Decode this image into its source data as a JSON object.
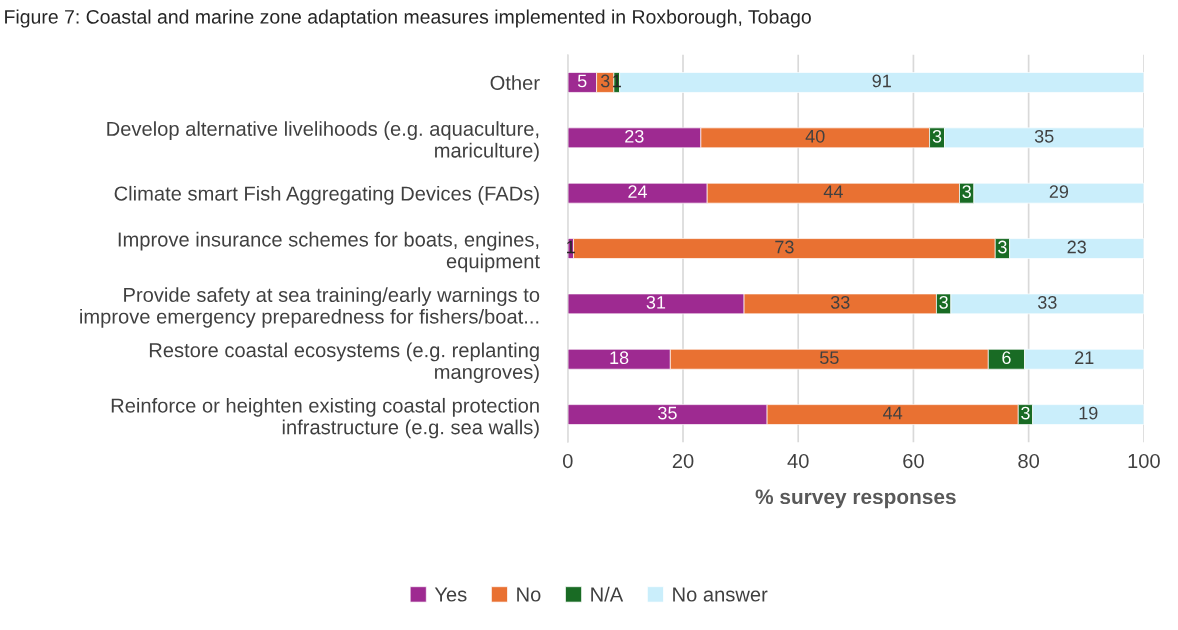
{
  "chart_data": {
    "type": "bar",
    "orientation": "horizontal",
    "stacked": true,
    "title": "Figure 7: Coastal and marine zone adaptation measures implemented in Roxborough, Tobago",
    "xlabel": "% survey responses",
    "categories": [
      "Other",
      "Develop alternative livelihoods (e.g. aquaculture,\nmariculture)",
      "Climate smart Fish Aggregating Devices (FADs)",
      "Improve insurance schemes for boats, engines,\nequipment",
      "Provide safety at sea training/early warnings to\nimprove emergency preparedness for fishers/boat...",
      "Restore coastal ecosystems (e.g. replanting\nmangroves)",
      "Reinforce or heighten existing coastal protection\ninfrastructure (e.g. sea walls)"
    ],
    "series": [
      {
        "name": "Yes",
        "color": "#9e2a91",
        "values": [
          5,
          23.1,
          24.2,
          1,
          30.6,
          17.8,
          34.6
        ],
        "value_labels": [
          "5",
          "23",
          "24",
          "1",
          "31",
          "18",
          "35"
        ]
      },
      {
        "name": "No",
        "color": "#e97132",
        "values": [
          3,
          39.7,
          43.8,
          73.2,
          33.4,
          55.2,
          43.6
        ],
        "value_labels": [
          "3",
          "40",
          "44",
          "73",
          "33",
          "55",
          "44"
        ]
      },
      {
        "name": "N/A",
        "color": "#196b24",
        "values": [
          1,
          2.6,
          2.5,
          2.5,
          2.5,
          6.3,
          2.5
        ],
        "value_labels": [
          "1",
          "3",
          "3",
          "3",
          "3",
          "6",
          "3"
        ]
      },
      {
        "name": "No answer",
        "color": "#caeefb",
        "values": [
          91,
          34.6,
          29.5,
          23.3,
          33.5,
          20.7,
          19.3
        ],
        "value_labels": [
          "91",
          "35",
          "29",
          "23",
          "33",
          "21",
          "19"
        ]
      }
    ],
    "xlim": [
      0,
      100
    ],
    "xticks": [
      0,
      20,
      40,
      60,
      80,
      100
    ],
    "grid": "x",
    "legend": "bottom"
  }
}
